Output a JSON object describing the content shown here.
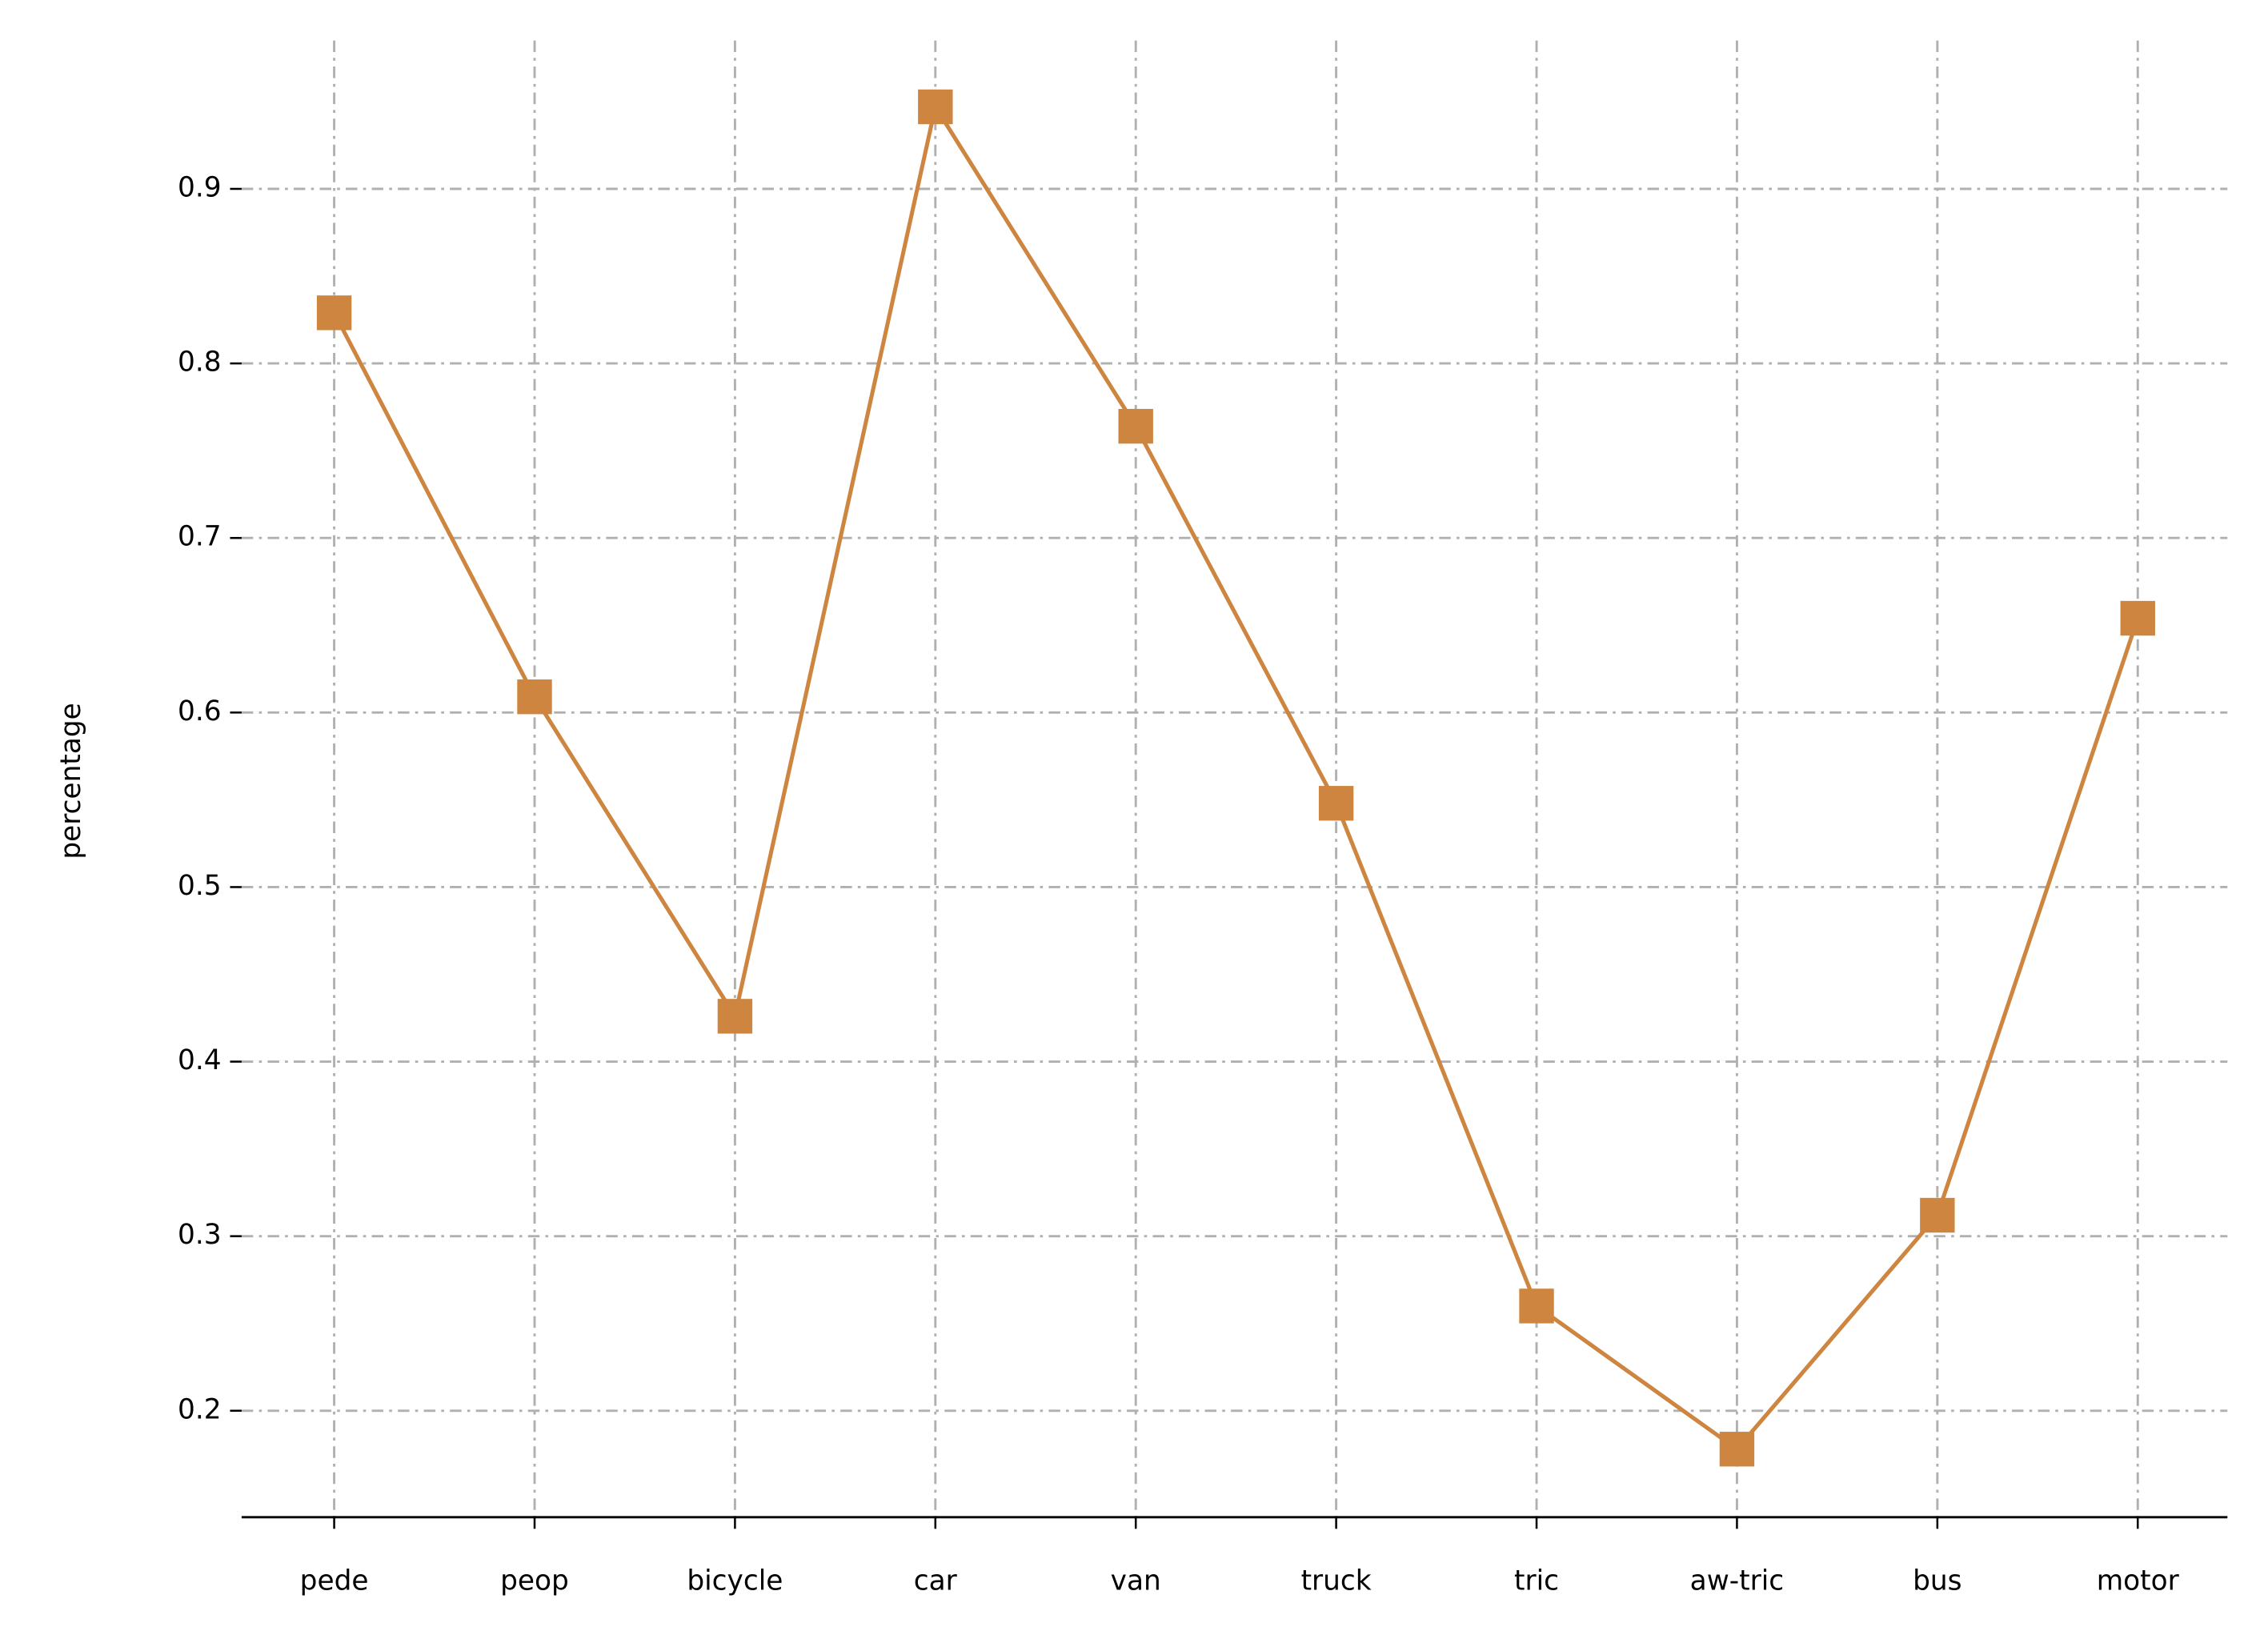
{
  "chart_data": {
    "type": "line",
    "y_label": "percentage",
    "categories": [
      "pede",
      "peop",
      "bicycle",
      "car",
      "van",
      "truck",
      "tric",
      "aw-tric",
      "bus",
      "motor"
    ],
    "series": [
      {
        "color": "#cd853f",
        "values": [
          0.829,
          0.609,
          0.426,
          0.947,
          0.764,
          0.548,
          0.26,
          0.178,
          0.312,
          0.654
        ]
      }
    ],
    "ylim": [
      0.139,
      0.985
    ],
    "yticks": [
      0.2,
      0.3,
      0.4,
      0.5,
      0.6,
      0.7,
      0.8,
      0.9
    ],
    "grid": true,
    "marker": "square"
  }
}
